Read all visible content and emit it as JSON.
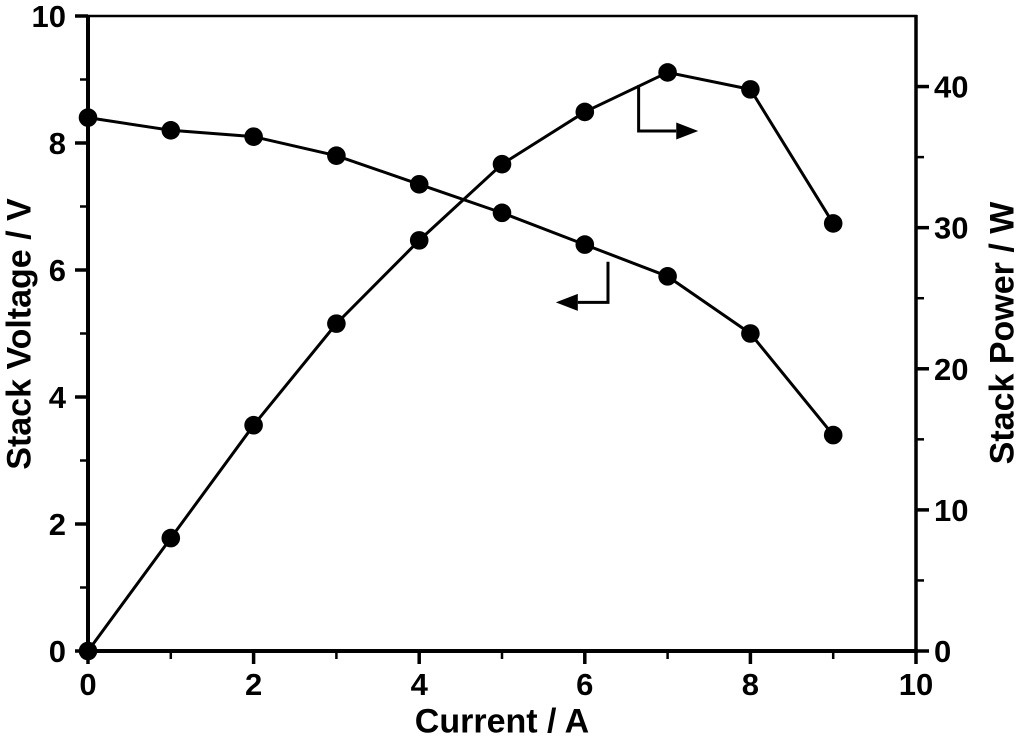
{
  "figure": {
    "background": "#ffffff",
    "foreground": "#000000"
  },
  "chart_data": {
    "type": "line",
    "title": "",
    "grid": false,
    "legend": false,
    "x": [
      0,
      1,
      2,
      3,
      4,
      5,
      6,
      7,
      8,
      9
    ],
    "series": [
      {
        "name": "stack-voltage",
        "axis": "left",
        "marker": "filled-circle",
        "color": "#000000",
        "values": [
          8.4,
          8.2,
          8.1,
          7.8,
          7.35,
          6.9,
          6.4,
          5.9,
          5.0,
          3.4
        ]
      },
      {
        "name": "stack-power",
        "axis": "right",
        "marker": "filled-circle",
        "color": "#000000",
        "values": [
          0,
          8.0,
          16.0,
          23.2,
          29.1,
          34.5,
          38.2,
          41.0,
          39.8,
          30.3
        ]
      }
    ],
    "x_axis": {
      "label": "Current / A",
      "min": 0,
      "max": 10,
      "major_ticks": [
        0,
        2,
        4,
        6,
        8,
        10
      ],
      "minor_ticks": [
        1,
        3,
        5,
        7,
        9
      ]
    },
    "y_left_axis": {
      "label": "Stack Voltage / V",
      "min": 0,
      "max": 10,
      "major_ticks": [
        0,
        2,
        4,
        6,
        8,
        10
      ],
      "minor_ticks": [
        1,
        3,
        5,
        7,
        9
      ]
    },
    "y_right_axis": {
      "label": "Stack Power / W",
      "min": 0,
      "max": 45,
      "major_ticks": [
        0,
        10,
        20,
        30,
        40
      ],
      "minor_ticks": [
        5,
        15,
        25,
        35
      ]
    },
    "annotations": [
      {
        "type": "axis-pointer-arrow",
        "target": "stack-power",
        "axis": "right",
        "points": [
          [
            6.65,
            40.1
          ],
          [
            6.65,
            36.85
          ],
          [
            7.37,
            36.85
          ]
        ]
      },
      {
        "type": "axis-pointer-arrow",
        "target": "stack-voltage",
        "axis": "left",
        "points": [
          [
            6.28,
            6.13
          ],
          [
            6.28,
            5.49
          ],
          [
            5.65,
            5.49
          ]
        ]
      }
    ]
  }
}
